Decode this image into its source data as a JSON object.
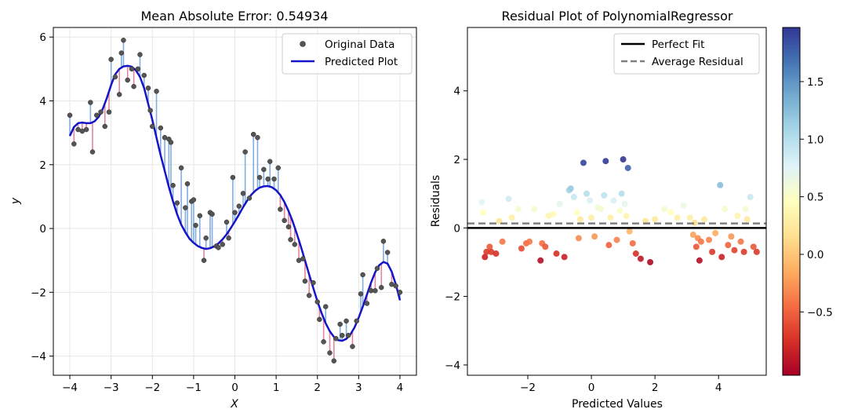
{
  "chart_data": [
    {
      "type": "scatter",
      "title": "Mean Absolute Error: 0.54934",
      "xlabel": "X",
      "ylabel": "y",
      "xlim": [
        -4.4,
        4.4
      ],
      "ylim": [
        -4.6,
        6.3
      ],
      "xticks": [
        -4,
        -3,
        -2,
        -1,
        0,
        1,
        2,
        3,
        4
      ],
      "yticks": [
        -4,
        -2,
        0,
        2,
        4,
        6
      ],
      "xtick_labels": [
        "−4",
        "−3",
        "−2",
        "−1",
        "0",
        "1",
        "2",
        "3",
        "4"
      ],
      "ytick_labels": [
        "−4",
        "−2",
        "0",
        "2",
        "4",
        "6"
      ],
      "grid": true,
      "legend_position": "top-right",
      "series": [
        {
          "name": "Original Data",
          "kind": "scatter",
          "color": "#555555",
          "points": [
            [
              -4.0,
              3.55
            ],
            [
              -3.9,
              2.65
            ],
            [
              -3.8,
              3.1
            ],
            [
              -3.7,
              3.05
            ],
            [
              -3.6,
              3.1
            ],
            [
              -3.5,
              3.95
            ],
            [
              -3.45,
              2.4
            ],
            [
              -3.35,
              3.55
            ],
            [
              -3.25,
              3.65
            ],
            [
              -3.15,
              3.2
            ],
            [
              -3.05,
              3.65
            ],
            [
              -3.0,
              5.3
            ],
            [
              -2.9,
              4.75
            ],
            [
              -2.8,
              4.2
            ],
            [
              -2.75,
              5.5
            ],
            [
              -2.7,
              5.9
            ],
            [
              -2.6,
              4.65
            ],
            [
              -2.5,
              5.0
            ],
            [
              -2.45,
              4.45
            ],
            [
              -2.35,
              5.0
            ],
            [
              -2.3,
              5.45
            ],
            [
              -2.2,
              4.8
            ],
            [
              -2.1,
              4.4
            ],
            [
              -2.05,
              3.7
            ],
            [
              -2.0,
              3.2
            ],
            [
              -1.9,
              4.3
            ],
            [
              -1.8,
              3.15
            ],
            [
              -1.7,
              2.85
            ],
            [
              -1.6,
              2.8
            ],
            [
              -1.55,
              2.7
            ],
            [
              -1.5,
              1.35
            ],
            [
              -1.4,
              0.8
            ],
            [
              -1.3,
              1.9
            ],
            [
              -1.2,
              0.65
            ],
            [
              -1.15,
              1.4
            ],
            [
              -1.05,
              0.85
            ],
            [
              -1.0,
              0.9
            ],
            [
              -0.95,
              0.1
            ],
            [
              -0.85,
              0.4
            ],
            [
              -0.75,
              -1.0
            ],
            [
              -0.7,
              -0.3
            ],
            [
              -0.6,
              0.5
            ],
            [
              -0.55,
              0.45
            ],
            [
              -0.45,
              -0.55
            ],
            [
              -0.4,
              -0.6
            ],
            [
              -0.3,
              -0.5
            ],
            [
              -0.2,
              0.2
            ],
            [
              -0.15,
              -0.3
            ],
            [
              -0.05,
              1.6
            ],
            [
              0.0,
              0.5
            ],
            [
              0.1,
              0.7
            ],
            [
              0.2,
              1.1
            ],
            [
              0.25,
              2.4
            ],
            [
              0.35,
              0.95
            ],
            [
              0.45,
              2.95
            ],
            [
              0.55,
              2.85
            ],
            [
              0.6,
              1.6
            ],
            [
              0.7,
              1.85
            ],
            [
              0.8,
              1.55
            ],
            [
              0.85,
              2.1
            ],
            [
              0.95,
              1.55
            ],
            [
              1.05,
              1.9
            ],
            [
              1.1,
              0.6
            ],
            [
              1.2,
              0.25
            ],
            [
              1.3,
              0.05
            ],
            [
              1.35,
              -0.35
            ],
            [
              1.45,
              -0.5
            ],
            [
              1.55,
              -1.0
            ],
            [
              1.65,
              -0.95
            ],
            [
              1.7,
              -1.65
            ],
            [
              1.8,
              -2.1
            ],
            [
              1.9,
              -1.7
            ],
            [
              2.0,
              -2.3
            ],
            [
              2.05,
              -2.85
            ],
            [
              2.15,
              -3.55
            ],
            [
              2.2,
              -2.45
            ],
            [
              2.3,
              -3.9
            ],
            [
              2.4,
              -4.15
            ],
            [
              2.45,
              -3.45
            ],
            [
              2.55,
              -3.0
            ],
            [
              2.6,
              -3.35
            ],
            [
              2.7,
              -2.9
            ],
            [
              2.75,
              -3.35
            ],
            [
              2.85,
              -3.7
            ],
            [
              2.95,
              -2.9
            ],
            [
              3.05,
              -2.05
            ],
            [
              3.1,
              -1.45
            ],
            [
              3.2,
              -2.35
            ],
            [
              3.3,
              -1.95
            ],
            [
              3.4,
              -1.95
            ],
            [
              3.45,
              -1.25
            ],
            [
              3.55,
              -1.85
            ],
            [
              3.6,
              -0.4
            ],
            [
              3.7,
              -0.75
            ],
            [
              3.8,
              -1.75
            ],
            [
              3.9,
              -1.8
            ],
            [
              4.0,
              -2.0
            ]
          ]
        },
        {
          "name": "Predicted Plot",
          "kind": "line",
          "color": "#1414c8",
          "points": [
            [
              -4.0,
              2.9
            ],
            [
              -3.9,
              3.18
            ],
            [
              -3.8,
              3.3
            ],
            [
              -3.7,
              3.32
            ],
            [
              -3.6,
              3.3
            ],
            [
              -3.5,
              3.3
            ],
            [
              -3.4,
              3.36
            ],
            [
              -3.3,
              3.5
            ],
            [
              -3.2,
              3.75
            ],
            [
              -3.1,
              4.1
            ],
            [
              -3.0,
              4.5
            ],
            [
              -2.9,
              4.83
            ],
            [
              -2.8,
              5.0
            ],
            [
              -2.7,
              5.08
            ],
            [
              -2.6,
              5.1
            ],
            [
              -2.5,
              5.07
            ],
            [
              -2.4,
              4.96
            ],
            [
              -2.3,
              4.75
            ],
            [
              -2.2,
              4.4
            ],
            [
              -2.1,
              3.9
            ],
            [
              -2.0,
              3.4
            ],
            [
              -1.9,
              2.85
            ],
            [
              -1.8,
              2.3
            ],
            [
              -1.7,
              1.8
            ],
            [
              -1.6,
              1.3
            ],
            [
              -1.5,
              0.85
            ],
            [
              -1.4,
              0.45
            ],
            [
              -1.3,
              0.12
            ],
            [
              -1.2,
              -0.12
            ],
            [
              -1.1,
              -0.32
            ],
            [
              -1.0,
              -0.45
            ],
            [
              -0.9,
              -0.55
            ],
            [
              -0.8,
              -0.61
            ],
            [
              -0.7,
              -0.64
            ],
            [
              -0.6,
              -0.62
            ],
            [
              -0.5,
              -0.56
            ],
            [
              -0.4,
              -0.47
            ],
            [
              -0.3,
              -0.34
            ],
            [
              -0.2,
              -0.18
            ],
            [
              -0.1,
              0.01
            ],
            [
              0.0,
              0.22
            ],
            [
              0.1,
              0.44
            ],
            [
              0.2,
              0.67
            ],
            [
              0.3,
              0.88
            ],
            [
              0.4,
              1.06
            ],
            [
              0.5,
              1.19
            ],
            [
              0.6,
              1.28
            ],
            [
              0.7,
              1.32
            ],
            [
              0.8,
              1.33
            ],
            [
              0.9,
              1.29
            ],
            [
              1.0,
              1.2
            ],
            [
              1.1,
              1.05
            ],
            [
              1.2,
              0.83
            ],
            [
              1.3,
              0.55
            ],
            [
              1.4,
              0.22
            ],
            [
              1.5,
              -0.16
            ],
            [
              1.6,
              -0.57
            ],
            [
              1.7,
              -1.0
            ],
            [
              1.8,
              -1.44
            ],
            [
              1.9,
              -1.87
            ],
            [
              2.0,
              -2.28
            ],
            [
              2.1,
              -2.65
            ],
            [
              2.2,
              -2.97
            ],
            [
              2.3,
              -3.22
            ],
            [
              2.4,
              -3.4
            ],
            [
              2.5,
              -3.5
            ],
            [
              2.6,
              -3.52
            ],
            [
              2.7,
              -3.46
            ],
            [
              2.8,
              -3.32
            ],
            [
              2.9,
              -3.1
            ],
            [
              3.0,
              -2.8
            ],
            [
              3.1,
              -2.45
            ],
            [
              3.2,
              -2.07
            ],
            [
              3.3,
              -1.7
            ],
            [
              3.4,
              -1.37
            ],
            [
              3.5,
              -1.15
            ],
            [
              3.6,
              -1.05
            ],
            [
              3.7,
              -1.1
            ],
            [
              3.8,
              -1.35
            ],
            [
              3.9,
              -1.75
            ],
            [
              4.0,
              -2.25
            ]
          ]
        }
      ]
    },
    {
      "type": "scatter",
      "title": "Residual Plot of PolynomialRegressor",
      "xlabel": "Predicted Values",
      "ylabel": "Residuals",
      "xlim": [
        -3.9,
        5.5
      ],
      "ylim": [
        -4.3,
        5.85
      ],
      "xticks": [
        -2,
        0,
        2,
        4
      ],
      "yticks": [
        -4,
        -2,
        0,
        2,
        4
      ],
      "xtick_labels": [
        "−2",
        "0",
        "2",
        "4"
      ],
      "ytick_labels": [
        "−4",
        "−2",
        "0",
        "2",
        "4"
      ],
      "grid": false,
      "legend_position": "top-right",
      "reference_lines": [
        {
          "name": "Perfect Fit",
          "y": 0.0,
          "color": "#000000",
          "style": "solid"
        },
        {
          "name": "Average Residual",
          "y": 0.13,
          "color": "#808080",
          "style": "dashed"
        }
      ],
      "colorbar": {
        "min": -1.05,
        "max": 1.97,
        "ticks": [
          -0.5,
          0.0,
          0.5,
          1.0,
          1.5
        ],
        "tick_labels": [
          "−0.5",
          "0.0",
          "0.5",
          "1.0",
          "1.5"
        ],
        "colormap": "RdYlBu"
      },
      "points": [
        [
          -3.45,
          0.75
        ],
        [
          -3.4,
          0.45
        ],
        [
          -3.35,
          -0.85
        ],
        [
          -3.3,
          -0.7
        ],
        [
          -3.2,
          -0.55
        ],
        [
          -3.15,
          -0.7
        ],
        [
          -3.0,
          -0.75
        ],
        [
          -2.9,
          0.2
        ],
        [
          -2.8,
          -0.4
        ],
        [
          -2.6,
          0.85
        ],
        [
          -2.5,
          0.3
        ],
        [
          -2.3,
          0.55
        ],
        [
          -2.2,
          -0.6
        ],
        [
          -2.05,
          -0.45
        ],
        [
          -1.95,
          -0.4
        ],
        [
          -1.8,
          0.55
        ],
        [
          -1.6,
          -0.95
        ],
        [
          -1.55,
          -0.45
        ],
        [
          -1.45,
          -0.55
        ],
        [
          -1.35,
          0.35
        ],
        [
          -1.2,
          0.4
        ],
        [
          -1.1,
          -0.75
        ],
        [
          -1.0,
          0.7
        ],
        [
          -0.85,
          -0.85
        ],
        [
          -0.7,
          1.1
        ],
        [
          -0.65,
          1.15
        ],
        [
          -0.55,
          0.9
        ],
        [
          -0.45,
          0.45
        ],
        [
          -0.4,
          -0.3
        ],
        [
          -0.35,
          0.25
        ],
        [
          -0.25,
          1.9
        ],
        [
          -0.15,
          1.0
        ],
        [
          -0.05,
          0.8
        ],
        [
          0.0,
          0.3
        ],
        [
          0.1,
          -0.25
        ],
        [
          0.2,
          0.6
        ],
        [
          0.3,
          0.55
        ],
        [
          0.4,
          0.95
        ],
        [
          0.45,
          1.95
        ],
        [
          0.55,
          -0.5
        ],
        [
          0.6,
          0.3
        ],
        [
          0.7,
          0.8
        ],
        [
          0.8,
          -0.35
        ],
        [
          0.9,
          0.5
        ],
        [
          0.95,
          1.0
        ],
        [
          1.0,
          2.0
        ],
        [
          1.05,
          0.7
        ],
        [
          1.1,
          0.35
        ],
        [
          1.15,
          1.75
        ],
        [
          1.2,
          -0.1
        ],
        [
          1.3,
          -0.45
        ],
        [
          1.4,
          -0.75
        ],
        [
          1.55,
          -0.9
        ],
        [
          1.7,
          0.2
        ],
        [
          1.85,
          -1.0
        ],
        [
          2.0,
          0.25
        ],
        [
          2.3,
          0.55
        ],
        [
          2.5,
          0.45
        ],
        [
          2.7,
          0.3
        ],
        [
          2.9,
          0.65
        ],
        [
          3.1,
          0.3
        ],
        [
          3.2,
          -0.2
        ],
        [
          3.25,
          0.15
        ],
        [
          3.3,
          -0.55
        ],
        [
          3.35,
          -0.3
        ],
        [
          3.4,
          -0.95
        ],
        [
          3.45,
          -0.4
        ],
        [
          3.55,
          0.25
        ],
        [
          3.7,
          -0.35
        ],
        [
          3.8,
          -0.7
        ],
        [
          3.9,
          -0.15
        ],
        [
          4.05,
          1.25
        ],
        [
          4.1,
          -0.85
        ],
        [
          4.2,
          0.55
        ],
        [
          4.3,
          -0.5
        ],
        [
          4.4,
          -0.25
        ],
        [
          4.5,
          -0.65
        ],
        [
          4.6,
          0.35
        ],
        [
          4.7,
          -0.4
        ],
        [
          4.8,
          -0.7
        ],
        [
          4.85,
          0.55
        ],
        [
          4.9,
          0.25
        ],
        [
          5.0,
          0.9
        ],
        [
          5.1,
          -0.55
        ],
        [
          5.2,
          -0.7
        ]
      ]
    }
  ]
}
